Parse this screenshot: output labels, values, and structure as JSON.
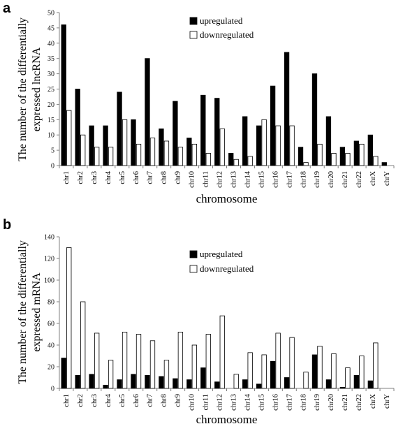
{
  "chart_data": [
    {
      "type": "bar",
      "panel_label": "a",
      "title": "",
      "xlabel": "chromosome",
      "ylabel_lines": [
        "The number of the differentially",
        "expressed lncRNA"
      ],
      "ylim": [
        0,
        50
      ],
      "ytick_step": 5,
      "legend_position": "top-center",
      "categories": [
        "chr1",
        "chr2",
        "chr3",
        "chr4",
        "chr5",
        "chr6",
        "chr7",
        "chr8",
        "chr9",
        "chr10",
        "chr11",
        "chr12",
        "chr13",
        "chr14",
        "chr15",
        "chr16",
        "chr17",
        "chr18",
        "chr19",
        "chr20",
        "chr21",
        "chr22",
        "chrX",
        "chrY"
      ],
      "series": [
        {
          "name": "upregulated",
          "color": "#000000",
          "values": [
            46,
            25,
            13,
            13,
            24,
            15,
            35,
            12,
            21,
            9,
            23,
            22,
            4,
            16,
            13,
            26,
            37,
            6,
            30,
            16,
            6,
            8,
            10,
            1
          ]
        },
        {
          "name": "downregulated",
          "color": "#ffffff",
          "values": [
            18,
            10,
            6,
            6,
            15,
            7,
            9,
            8,
            6,
            7,
            4,
            12,
            2,
            3,
            15,
            13,
            13,
            1,
            7,
            4,
            4,
            7,
            3,
            0
          ]
        }
      ]
    },
    {
      "type": "bar",
      "panel_label": "b",
      "title": "",
      "xlabel": "chromosome",
      "ylabel_lines": [
        "The number of the differentially",
        "expressed mRNA"
      ],
      "ylim": [
        0,
        140
      ],
      "ytick_step": 20,
      "legend_position": "top-center",
      "categories": [
        "chr1",
        "chr2",
        "chr3",
        "chr4",
        "chr5",
        "chr6",
        "chr7",
        "chr8",
        "chr9",
        "chr10",
        "chr11",
        "chr12",
        "chr13",
        "chr14",
        "chr15",
        "chr16",
        "chr17",
        "chr18",
        "chr19",
        "chr20",
        "chr21",
        "chr22",
        "chrX",
        "chrY"
      ],
      "series": [
        {
          "name": "upregulated",
          "color": "#000000",
          "values": [
            28,
            12,
            13,
            3,
            8,
            13,
            12,
            11,
            9,
            8,
            19,
            6,
            0,
            8,
            4,
            25,
            10,
            0,
            31,
            8,
            1,
            12,
            7,
            0
          ]
        },
        {
          "name": "downregulated",
          "color": "#ffffff",
          "values": [
            130,
            80,
            51,
            26,
            52,
            50,
            44,
            26,
            52,
            40,
            50,
            67,
            13,
            33,
            31,
            51,
            47,
            15,
            39,
            32,
            19,
            30,
            42,
            0
          ]
        }
      ]
    }
  ]
}
